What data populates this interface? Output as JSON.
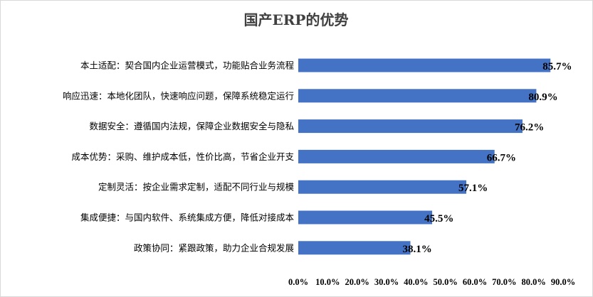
{
  "chart_data": {
    "type": "bar",
    "orientation": "horizontal",
    "title": "国产ERP的优势",
    "categories": [
      "本土适配：契合国内企业运营模式，功能贴合业务流程",
      "响应迅速：本地化团队，快速响应问题，保障系统稳定运行",
      "数据安全：遵循国内法规，保障企业数据安全与隐私",
      "成本优势：采购、维护成本低，性价比高，节省企业开支",
      "定制灵活：按企业需求定制，适配不同行业与规模",
      "集成便捷：与国内软件、系统集成方便，降低对接成本",
      "政策协同：紧跟政策，助力企业合规发展"
    ],
    "values": [
      85.7,
      80.9,
      76.2,
      66.7,
      57.1,
      45.5,
      38.1
    ],
    "data_labels": [
      "85.7%",
      "80.9%",
      "76.2%",
      "66.7%",
      "57.1%",
      "45.5%",
      "38.1%"
    ],
    "xlim": [
      0,
      90
    ],
    "xticks": [
      "0.0%",
      "10.0%",
      "20.0%",
      "30.0%",
      "40.0%",
      "50.0%",
      "60.0%",
      "70.0%",
      "80.0%",
      "90.0%"
    ],
    "xlabel": "",
    "ylabel": "",
    "grid": false,
    "legend": "none",
    "bar_color": "#4472c4"
  }
}
